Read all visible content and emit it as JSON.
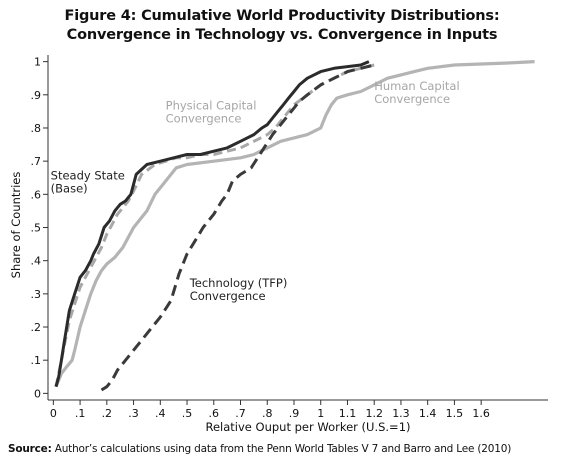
{
  "title_line1": "Figure 4: Cumulative World Productivity Distributions:",
  "title_line2": "Convergence in Technology vs. Convergence in Inputs",
  "source_label": "Source:",
  "source_text": " Author’s calculations using data from the Penn World Tables V 7 and Barro and Lee (2010)",
  "colors": {
    "steady_state": "#2b2b2b",
    "physical_capital": "#a8a8a8",
    "human_capital": "#b4b4b4",
    "technology": "#3a3a3a",
    "annotation_gray": "#a6a6a6",
    "annotation_dark": "#222222",
    "axis": "#333333"
  },
  "chart_data": {
    "type": "line",
    "title": "",
    "xlabel": "Relative Ouput per Worker (U.S.=1)",
    "ylabel": "Share of Countries",
    "xlim": [
      -0.02,
      1.85
    ],
    "ylim": [
      -0.02,
      1.02
    ],
    "x_ticks": [
      0,
      0.1,
      0.2,
      0.3,
      0.4,
      0.5,
      0.6,
      0.7,
      0.8,
      0.9,
      1,
      1.1,
      1.2,
      1.3,
      1.4,
      1.5,
      1.6
    ],
    "x_tick_labels": [
      "0",
      ".1",
      ".2",
      ".3",
      ".4",
      ".5",
      ".6",
      ".7",
      ".8",
      ".9",
      "1",
      "1.1",
      "1.2",
      "1.3",
      "1.4",
      "1.5",
      "1.6"
    ],
    "y_ticks": [
      0,
      0.1,
      0.2,
      0.3,
      0.4,
      0.5,
      0.6,
      0.7,
      0.8,
      0.9,
      1
    ],
    "y_tick_labels": [
      "0",
      ".1",
      ".2",
      ".3",
      ".4",
      ".5",
      ".6",
      ".7",
      ".8",
      ".9",
      "1"
    ],
    "grid": false,
    "legend": "none",
    "annotations": [
      {
        "lines": [
          "Physical Capital",
          "Convergence"
        ],
        "x": 0.42,
        "y": 0.855,
        "color": "annotation_gray"
      },
      {
        "lines": [
          "Human Capital",
          "Convergence"
        ],
        "x": 1.2,
        "y": 0.915,
        "color": "annotation_gray"
      },
      {
        "lines": [
          "Steady State",
          "(Base)"
        ],
        "x": -0.01,
        "y": 0.645,
        "color": "annotation_dark"
      },
      {
        "lines": [
          "Technology (TFP)",
          "Convergence"
        ],
        "x": 0.51,
        "y": 0.32,
        "color": "annotation_dark"
      }
    ],
    "series": [
      {
        "name": "Steady State (Base)",
        "key": "steady_state",
        "style": "solid",
        "x": [
          0.01,
          0.02,
          0.03,
          0.04,
          0.05,
          0.06,
          0.08,
          0.1,
          0.12,
          0.14,
          0.15,
          0.17,
          0.19,
          0.21,
          0.23,
          0.25,
          0.27,
          0.29,
          0.31,
          0.35,
          0.4,
          0.45,
          0.5,
          0.55,
          0.6,
          0.65,
          0.7,
          0.75,
          0.78,
          0.8,
          0.82,
          0.84,
          0.86,
          0.88,
          0.9,
          0.92,
          0.95,
          1.0,
          1.05,
          1.1,
          1.15,
          1.18
        ],
        "y": [
          0.02,
          0.05,
          0.1,
          0.15,
          0.2,
          0.25,
          0.3,
          0.35,
          0.37,
          0.4,
          0.42,
          0.45,
          0.5,
          0.52,
          0.55,
          0.57,
          0.58,
          0.6,
          0.66,
          0.69,
          0.7,
          0.71,
          0.72,
          0.72,
          0.73,
          0.74,
          0.76,
          0.78,
          0.8,
          0.81,
          0.83,
          0.85,
          0.87,
          0.89,
          0.91,
          0.93,
          0.95,
          0.97,
          0.98,
          0.985,
          0.99,
          1.0
        ]
      },
      {
        "name": "Physical Capital Convergence",
        "key": "physical_capital",
        "style": "dash",
        "x": [
          0.01,
          0.02,
          0.03,
          0.04,
          0.05,
          0.06,
          0.08,
          0.1,
          0.12,
          0.14,
          0.16,
          0.18,
          0.2,
          0.22,
          0.24,
          0.26,
          0.28,
          0.3,
          0.33,
          0.38,
          0.42,
          0.46,
          0.5,
          0.55,
          0.6,
          0.65,
          0.7,
          0.75,
          0.8,
          0.83,
          0.85,
          0.87,
          0.9,
          0.95,
          1.0,
          1.05,
          1.1,
          1.15,
          1.2
        ],
        "y": [
          0.02,
          0.06,
          0.1,
          0.14,
          0.18,
          0.22,
          0.27,
          0.32,
          0.35,
          0.38,
          0.41,
          0.44,
          0.48,
          0.51,
          0.54,
          0.56,
          0.58,
          0.61,
          0.66,
          0.69,
          0.7,
          0.71,
          0.71,
          0.72,
          0.72,
          0.73,
          0.74,
          0.76,
          0.78,
          0.8,
          0.82,
          0.84,
          0.87,
          0.9,
          0.93,
          0.95,
          0.97,
          0.98,
          0.99
        ]
      },
      {
        "name": "Human Capital Convergence",
        "key": "human_capital",
        "style": "solid",
        "x": [
          0.01,
          0.02,
          0.03,
          0.05,
          0.07,
          0.08,
          0.1,
          0.12,
          0.14,
          0.16,
          0.18,
          0.2,
          0.23,
          0.26,
          0.28,
          0.3,
          0.32,
          0.35,
          0.38,
          0.4,
          0.42,
          0.44,
          0.46,
          0.5,
          0.6,
          0.7,
          0.75,
          0.8,
          0.85,
          0.9,
          0.95,
          1.0,
          1.02,
          1.04,
          1.06,
          1.1,
          1.15,
          1.2,
          1.25,
          1.3,
          1.35,
          1.4,
          1.5,
          1.6,
          1.7,
          1.8
        ],
        "y": [
          0.02,
          0.04,
          0.06,
          0.08,
          0.1,
          0.13,
          0.2,
          0.25,
          0.3,
          0.34,
          0.37,
          0.39,
          0.41,
          0.44,
          0.47,
          0.5,
          0.52,
          0.55,
          0.6,
          0.62,
          0.64,
          0.66,
          0.68,
          0.69,
          0.7,
          0.71,
          0.72,
          0.74,
          0.76,
          0.77,
          0.78,
          0.8,
          0.84,
          0.87,
          0.89,
          0.9,
          0.91,
          0.93,
          0.95,
          0.96,
          0.97,
          0.98,
          0.99,
          0.993,
          0.996,
          1.0
        ]
      },
      {
        "name": "Technology (TFP) Convergence",
        "key": "technology",
        "style": "dash",
        "x": [
          0.18,
          0.2,
          0.22,
          0.24,
          0.26,
          0.28,
          0.3,
          0.33,
          0.36,
          0.4,
          0.44,
          0.47,
          0.5,
          0.53,
          0.56,
          0.6,
          0.63,
          0.65,
          0.67,
          0.7,
          0.74,
          0.78,
          0.82,
          0.85,
          0.88,
          0.9,
          0.92,
          0.95,
          1.0,
          1.05,
          1.1,
          1.15,
          1.2
        ],
        "y": [
          0.01,
          0.02,
          0.04,
          0.07,
          0.09,
          0.11,
          0.13,
          0.16,
          0.19,
          0.23,
          0.28,
          0.36,
          0.42,
          0.46,
          0.5,
          0.54,
          0.58,
          0.6,
          0.64,
          0.66,
          0.68,
          0.73,
          0.78,
          0.81,
          0.84,
          0.86,
          0.88,
          0.9,
          0.93,
          0.95,
          0.97,
          0.98,
          0.99
        ]
      }
    ]
  }
}
